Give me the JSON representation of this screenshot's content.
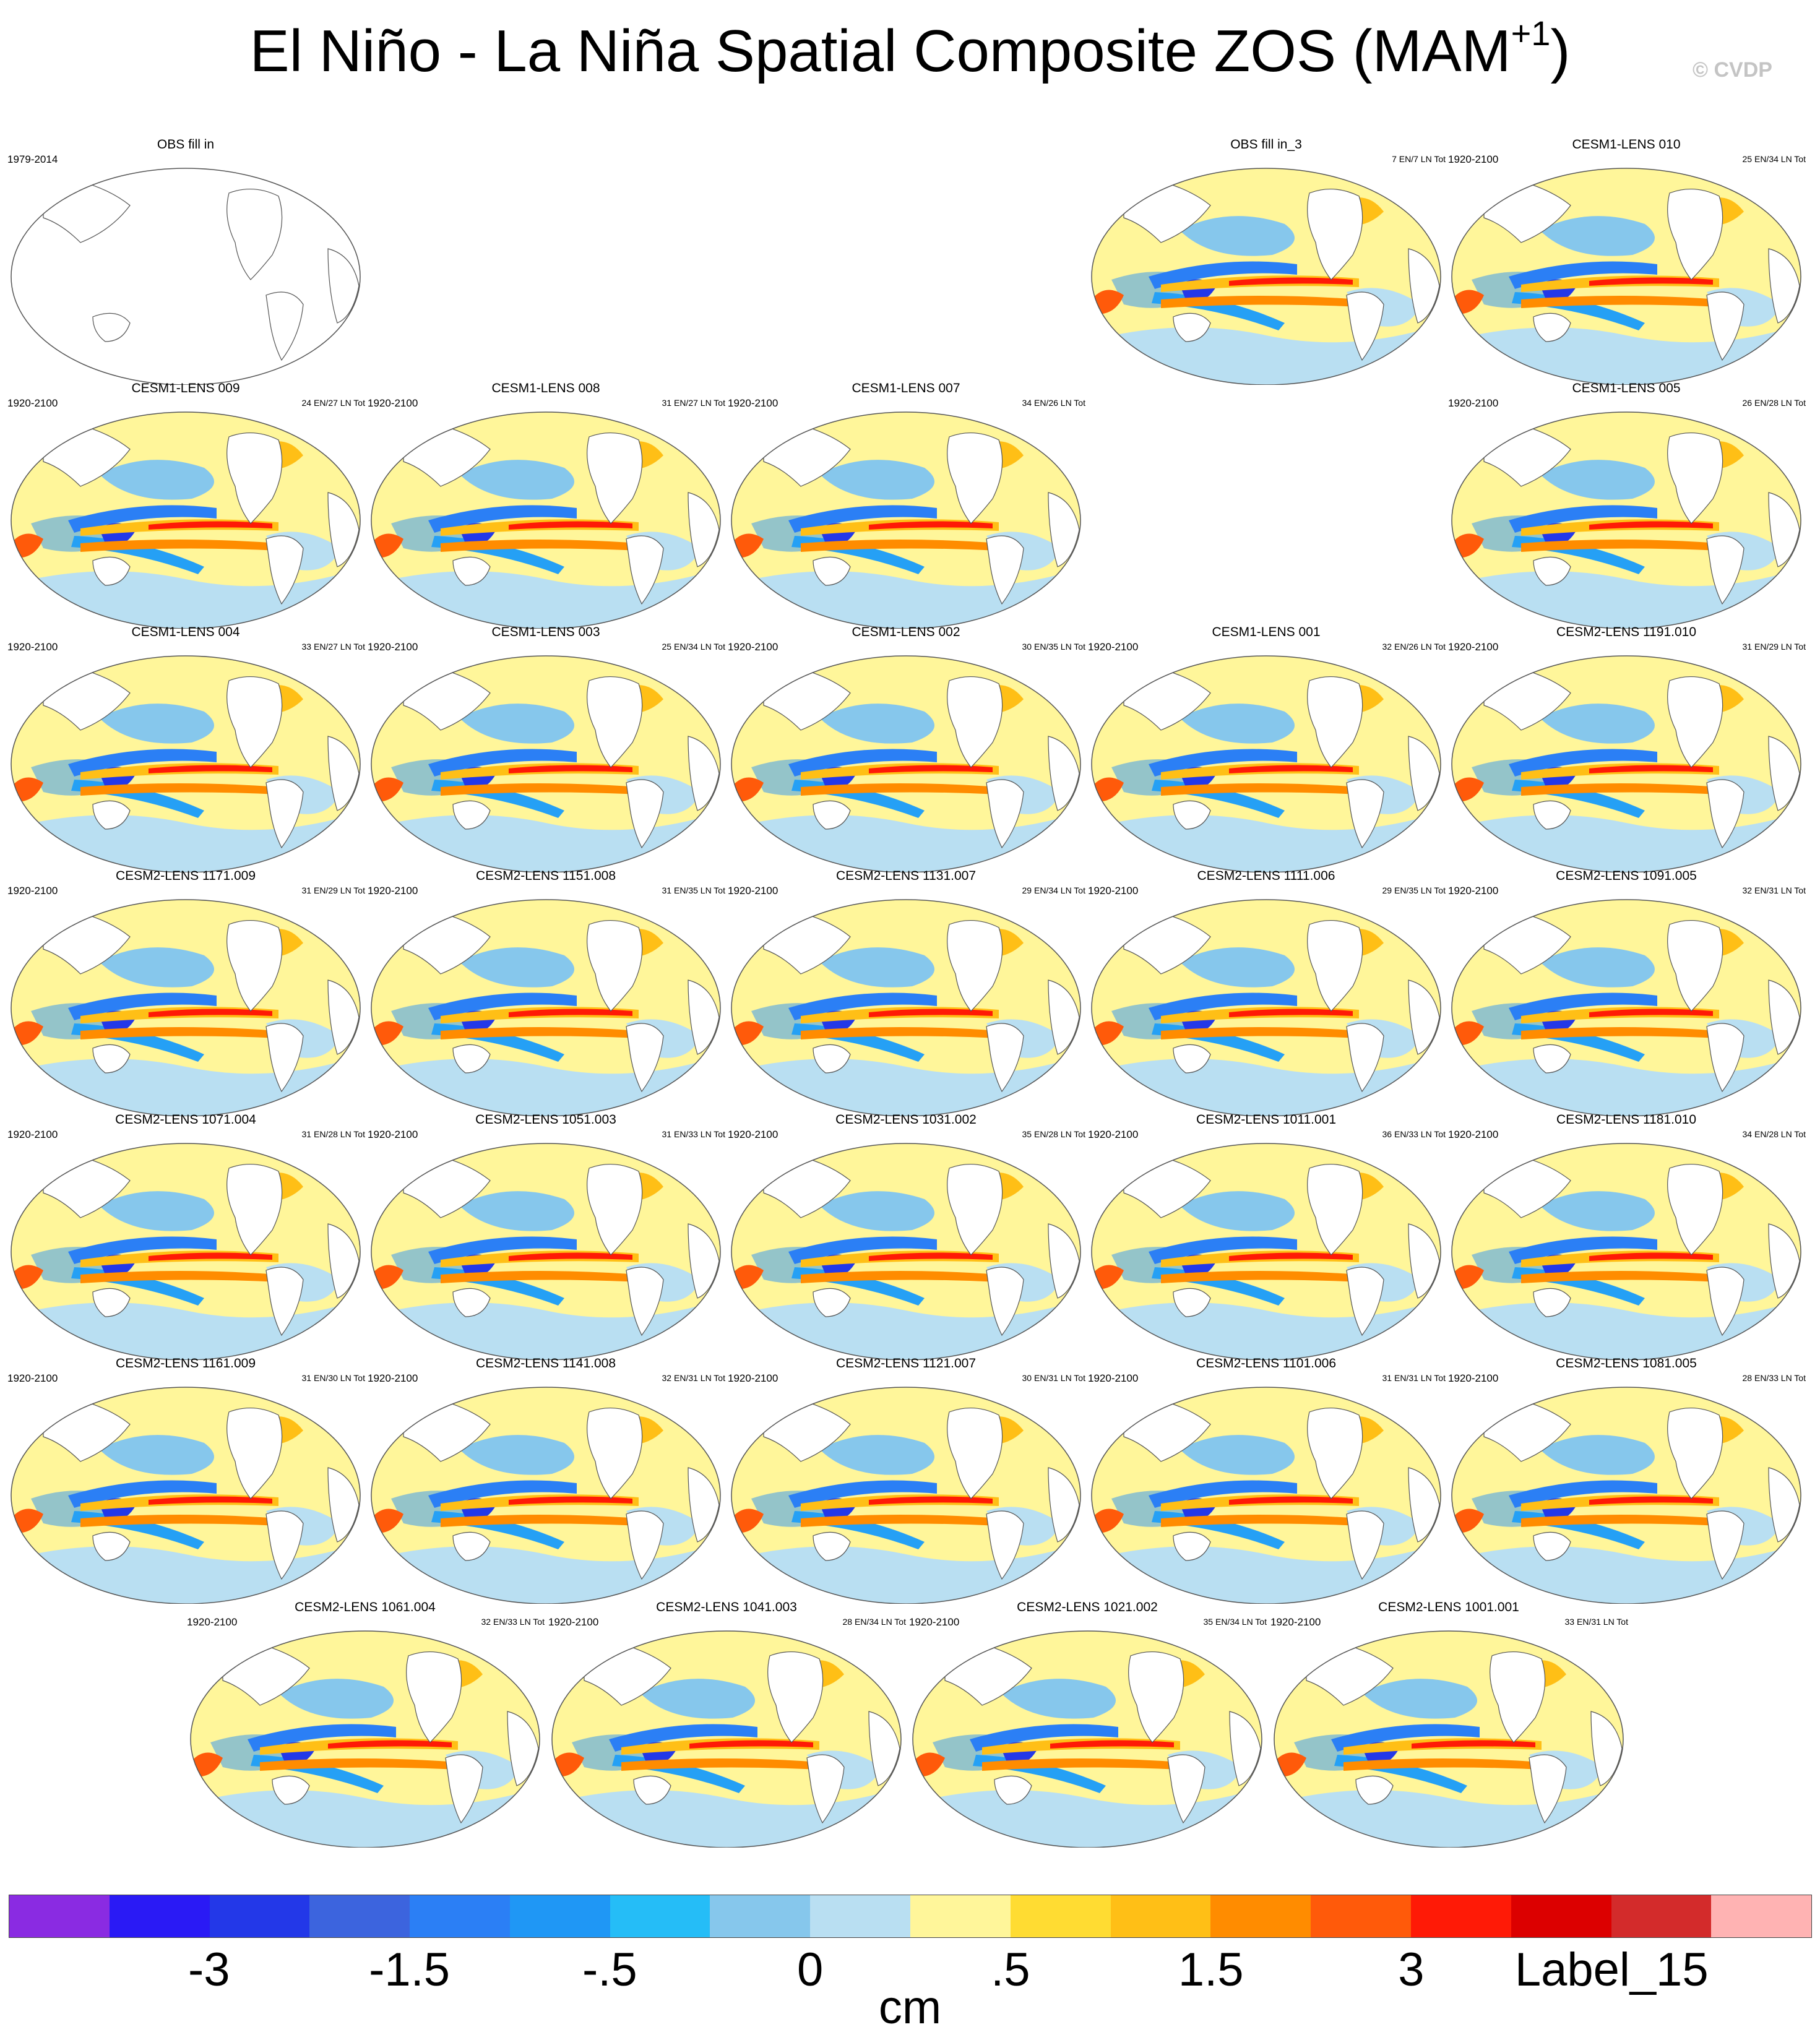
{
  "title": {
    "main": "El Niño - La Niña Spatial Composite ZOS (MAM",
    "superscript": "+1",
    "close": ")"
  },
  "credit": "© CVDP",
  "panels": [
    {
      "title": "OBS fill in",
      "years": "1979-2014",
      "count": "",
      "empty": true
    },
    {
      "title": "OBS fill in_3",
      "years": "",
      "count": "7 EN/7 LN Tot"
    },
    {
      "title": "CESM1-LENS 010",
      "years": "1920-2100",
      "count": "25 EN/34 LN Tot"
    },
    {
      "title": "CESM1-LENS 009",
      "years": "1920-2100",
      "count": "24 EN/27 LN Tot"
    },
    {
      "title": "CESM1-LENS 008",
      "years": "1920-2100",
      "count": "31 EN/27 LN Tot"
    },
    {
      "title": "CESM1-LENS 007",
      "years": "1920-2100",
      "count": "34 EN/26 LN Tot"
    },
    {
      "title": "CESM1-LENS 005",
      "years": "1920-2100",
      "count": "26 EN/28 LN Tot"
    },
    {
      "title": "CESM1-LENS 004",
      "years": "1920-2100",
      "count": "33 EN/27 LN Tot"
    },
    {
      "title": "CESM1-LENS 003",
      "years": "1920-2100",
      "count": "25 EN/34 LN Tot"
    },
    {
      "title": "CESM1-LENS 002",
      "years": "1920-2100",
      "count": "30 EN/35 LN Tot"
    },
    {
      "title": "CESM1-LENS 001",
      "years": "1920-2100",
      "count": "32 EN/26 LN Tot"
    },
    {
      "title": "CESM2-LENS 1191.010",
      "years": "1920-2100",
      "count": "31 EN/29 LN Tot"
    },
    {
      "title": "CESM2-LENS 1171.009",
      "years": "1920-2100",
      "count": "31 EN/29 LN Tot"
    },
    {
      "title": "CESM2-LENS 1151.008",
      "years": "1920-2100",
      "count": "31 EN/35 LN Tot"
    },
    {
      "title": "CESM2-LENS 1131.007",
      "years": "1920-2100",
      "count": "29 EN/34 LN Tot"
    },
    {
      "title": "CESM2-LENS 1111.006",
      "years": "1920-2100",
      "count": "29 EN/35 LN Tot"
    },
    {
      "title": "CESM2-LENS 1091.005",
      "years": "1920-2100",
      "count": "32 EN/31 LN Tot"
    },
    {
      "title": "CESM2-LENS 1071.004",
      "years": "1920-2100",
      "count": "31 EN/28 LN Tot"
    },
    {
      "title": "CESM2-LENS 1051.003",
      "years": "1920-2100",
      "count": "31 EN/33 LN Tot"
    },
    {
      "title": "CESM2-LENS 1031.002",
      "years": "1920-2100",
      "count": "35 EN/28 LN Tot"
    },
    {
      "title": "CESM2-LENS 1011.001",
      "years": "1920-2100",
      "count": "36 EN/33 LN Tot"
    },
    {
      "title": "CESM2-LENS 1181.010",
      "years": "1920-2100",
      "count": "34 EN/28 LN Tot"
    },
    {
      "title": "CESM2-LENS 1161.009",
      "years": "1920-2100",
      "count": "31 EN/30 LN Tot"
    },
    {
      "title": "CESM2-LENS 1141.008",
      "years": "1920-2100",
      "count": "32 EN/31 LN Tot"
    },
    {
      "title": "CESM2-LENS 1121.007",
      "years": "1920-2100",
      "count": "30 EN/31 LN Tot"
    },
    {
      "title": "CESM2-LENS 1101.006",
      "years": "1920-2100",
      "count": "31 EN/31 LN Tot"
    },
    {
      "title": "CESM2-LENS 1081.005",
      "years": "1920-2100",
      "count": "28 EN/33 LN Tot"
    },
    {
      "title": "CESM2-LENS 1061.004",
      "years": "1920-2100",
      "count": "32 EN/33 LN Tot"
    },
    {
      "title": "CESM2-LENS 1041.003",
      "years": "1920-2100",
      "count": "28 EN/34 LN Tot"
    },
    {
      "title": "CESM2-LENS 1021.002",
      "years": "1920-2100",
      "count": "35 EN/34 LN Tot"
    },
    {
      "title": "CESM2-LENS 1001.001",
      "years": "1920-2100",
      "count": "33 EN/31 LN Tot"
    }
  ],
  "colorbar": {
    "colors": [
      "#8a2be2",
      "#2a1af5",
      "#2338e8",
      "#3c64de",
      "#2b7ff5",
      "#1f97f5",
      "#25bdf7",
      "#86c7ec",
      "#b9dff2",
      "#fff69a",
      "#ffdc32",
      "#ffbf16",
      "#ff8c00",
      "#ff5a0a",
      "#ff1a06",
      "#dc0000",
      "#d32b2b",
      "#ffb3b3"
    ],
    "labels": [
      "-3",
      "-1.5",
      "-.5",
      "0",
      ".5",
      "1.5",
      "3",
      "Label_15"
    ],
    "units": "cm"
  }
}
